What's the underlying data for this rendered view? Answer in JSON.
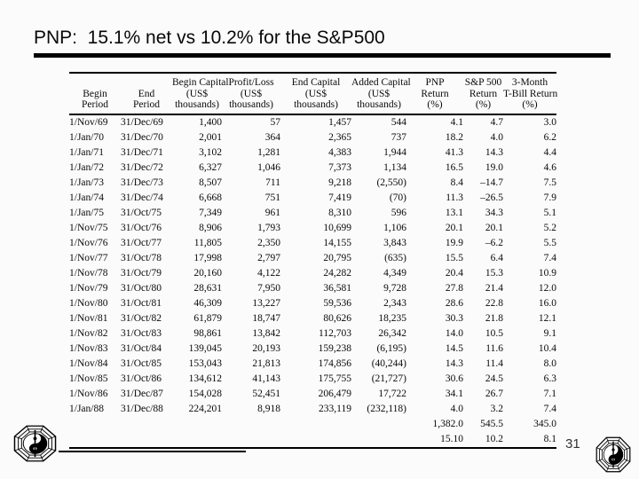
{
  "slide": {
    "title": "PNP:  15.1% net vs 10.2% for the S&P500",
    "page_number": "31"
  },
  "colors": {
    "background": "#fbfbfb",
    "text": "#0a0a0a",
    "rule": "#000000"
  },
  "icons": {
    "left_logo": "yin-yang-dollar-octagon",
    "right_logo": "yin-yang-dollar-octagon"
  },
  "table": {
    "columns": [
      "Begin\nPeriod",
      "End\nPeriod",
      "Begin Capital\n(US$\nthousands)",
      "Profit/Loss\n(US$\nthousands)",
      "End Capital\n(US$\nthousands)",
      "Added Capital\n(US$\nthousands)",
      "PNP\nReturn\n(%)",
      "S&P 500\nReturn\n(%)",
      "3-Month\nT-Bill Return\n(%)"
    ],
    "rows": [
      [
        "1/Nov/69",
        "31/Dec/69",
        "1,400",
        "57",
        "1,457",
        "544",
        "4.1",
        "4.7",
        "3.0"
      ],
      [
        "1/Jan/70",
        "31/Dec/70",
        "2,001",
        "364",
        "2,365",
        "737",
        "18.2",
        "4.0",
        "6.2"
      ],
      [
        "1/Jan/71",
        "31/Dec/71",
        "3,102",
        "1,281",
        "4,383",
        "1,944",
        "41.3",
        "14.3",
        "4.4"
      ],
      [
        "1/Jan/72",
        "31/Dec/72",
        "6,327",
        "1,046",
        "7,373",
        "1,134",
        "16.5",
        "19.0",
        "4.6"
      ],
      [
        "1/Jan/73",
        "31/Dec/73",
        "8,507",
        "711",
        "9,218",
        "(2,550)",
        "8.4",
        "–14.7",
        "7.5"
      ],
      [
        "1/Jan/74",
        "31/Dec/74",
        "6,668",
        "751",
        "7,419",
        "(70)",
        "11.3",
        "–26.5",
        "7.9"
      ],
      [
        "1/Jan/75",
        "31/Oct/75",
        "7,349",
        "961",
        "8,310",
        "596",
        "13.1",
        "34.3",
        "5.1"
      ],
      [
        "1/Nov/75",
        "31/Oct/76",
        "8,906",
        "1,793",
        "10,699",
        "1,106",
        "20.1",
        "20.1",
        "5.2"
      ],
      [
        "1/Nov/76",
        "31/Oct/77",
        "11,805",
        "2,350",
        "14,155",
        "3,843",
        "19.9",
        "–6.2",
        "5.5"
      ],
      [
        "1/Nov/77",
        "31/Oct/78",
        "17,998",
        "2,797",
        "20,795",
        "(635)",
        "15.5",
        "6.4",
        "7.4"
      ],
      [
        "1/Nov/78",
        "31/Oct/79",
        "20,160",
        "4,122",
        "24,282",
        "4,349",
        "20.4",
        "15.3",
        "10.9"
      ],
      [
        "1/Nov/79",
        "31/Oct/80",
        "28,631",
        "7,950",
        "36,581",
        "9,728",
        "27.8",
        "21.4",
        "12.0"
      ],
      [
        "1/Nov/80",
        "31/Oct/81",
        "46,309",
        "13,227",
        "59,536",
        "2,343",
        "28.6",
        "22.8",
        "16.0"
      ],
      [
        "1/Nov/81",
        "31/Oct/82",
        "61,879",
        "18,747",
        "80,626",
        "18,235",
        "30.3",
        "21.8",
        "12.1"
      ],
      [
        "1/Nov/82",
        "31/Oct/83",
        "98,861",
        "13,842",
        "112,703",
        "26,342",
        "14.0",
        "10.5",
        "9.1"
      ],
      [
        "1/Nov/83",
        "31/Oct/84",
        "139,045",
        "20,193",
        "159,238",
        "(6,195)",
        "14.5",
        "11.6",
        "10.4"
      ],
      [
        "1/Nov/84",
        "31/Oct/85",
        "153,043",
        "21,813",
        "174,856",
        "(40,244)",
        "14.3",
        "11.4",
        "8.0"
      ],
      [
        "1/Nov/85",
        "31/Oct/86",
        "134,612",
        "41,143",
        "175,755",
        "(21,727)",
        "30.6",
        "24.5",
        "6.3"
      ],
      [
        "1/Nov/86",
        "31/Dec/87",
        "154,028",
        "52,451",
        "206,479",
        "17,722",
        "34.1",
        "26.7",
        "7.1"
      ],
      [
        "1/Jan/88",
        "31/Dec/88",
        "224,201",
        "8,918",
        "233,119",
        "(232,118)",
        "4.0",
        "3.2",
        "7.4"
      ]
    ],
    "totals_row": [
      "",
      "",
      "",
      "",
      "",
      "",
      "1,382.0",
      "545.5",
      "345.0"
    ],
    "average_row": [
      "",
      "",
      "",
      "",
      "",
      "",
      "15.10",
      "10.2",
      "8.1"
    ]
  }
}
